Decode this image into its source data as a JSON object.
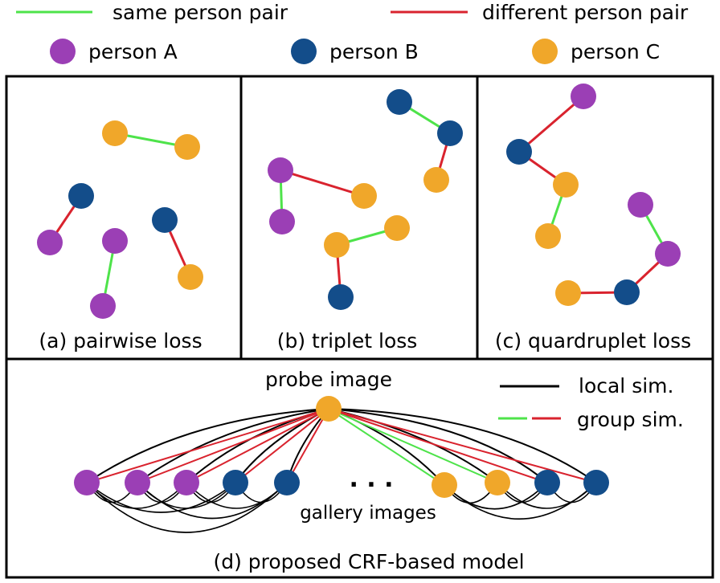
{
  "legend": {
    "same_pair": "same person pair",
    "diff_pair": "different person pair",
    "person_a": "person A",
    "person_b": "person B",
    "person_c": "person C"
  },
  "colors": {
    "person_a": "#9b3fb5",
    "person_b": "#134d8a",
    "person_c": "#f0a72a",
    "same": "#4ee34a",
    "different": "#d9232e",
    "local": "#000000"
  },
  "panels": {
    "pairwise": "(a) pairwise loss",
    "triplet": "(b) triplet loss",
    "quadruplet": "(c) quardruplet loss",
    "crf": "(d) proposed CRF-based model"
  },
  "crf": {
    "probe_label": "probe image",
    "gallery_label": "gallery images",
    "local_label": "local sim.",
    "group_label": "group sim.",
    "ellipsis": ". . ."
  }
}
